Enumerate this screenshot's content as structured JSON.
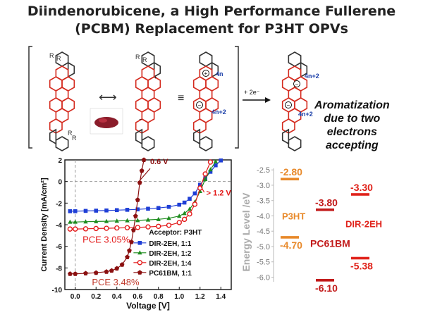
{
  "title": {
    "line1": "Diindenorubicene, a High Performance Fullerene",
    "line2": "(PCBM) Replacement for P3HT OPVs"
  },
  "scheme": {
    "r_label": "R",
    "plus": "+",
    "minus": "−",
    "charge_4n": "4n",
    "charge_4n2": "4n+2",
    "reduction": "+ 2e⁻",
    "equiv": "≡",
    "resonance": "⟷",
    "aromatization": [
      "Aromatization",
      "due to two",
      "electrons",
      "accepting"
    ],
    "colors": {
      "ring": "#d42a1e",
      "bond": "#333333",
      "charge_blue": "#1a3ea8"
    }
  },
  "chart_data": [
    {
      "type": "line",
      "xlabel": "Voltage [V]",
      "ylabel": "Current Density [mA/cm²]",
      "xlim": [
        -0.1,
        1.5
      ],
      "ylim": [
        -10,
        2
      ],
      "xticks": [
        "0.0",
        "0.2",
        "0.4",
        "0.6",
        "0.8",
        "1.0",
        "1.2",
        "1.4"
      ],
      "yticks": [
        "2",
        "0",
        "-2",
        "-4",
        "-6",
        "-8",
        "-10"
      ],
      "legend_title": "Acceptor: P3HT",
      "legend_position": "lower-right",
      "series": [
        {
          "name": "DIR-2EH, 1:1",
          "color": "#1f3fd6",
          "marker": "square",
          "x": [
            -0.05,
            0.0,
            0.1,
            0.2,
            0.3,
            0.4,
            0.5,
            0.6,
            0.7,
            0.8,
            0.9,
            1.0,
            1.05,
            1.1,
            1.15,
            1.2,
            1.25,
            1.3,
            1.35,
            1.4
          ],
          "y": [
            -2.75,
            -2.75,
            -2.72,
            -2.7,
            -2.68,
            -2.65,
            -2.62,
            -2.58,
            -2.52,
            -2.45,
            -2.35,
            -2.15,
            -1.95,
            -1.6,
            -1.1,
            -0.3,
            0.3,
            0.9,
            1.5,
            1.95
          ]
        },
        {
          "name": "DIR-2EH, 1:2",
          "color": "#1e8c1e",
          "marker": "triangle",
          "x": [
            -0.05,
            0.0,
            0.1,
            0.2,
            0.3,
            0.4,
            0.5,
            0.6,
            0.7,
            0.8,
            0.9,
            1.0,
            1.05,
            1.1,
            1.15,
            1.2,
            1.25,
            1.3,
            1.35
          ],
          "y": [
            -3.75,
            -3.75,
            -3.72,
            -3.7,
            -3.68,
            -3.65,
            -3.62,
            -3.6,
            -3.55,
            -3.5,
            -3.4,
            -3.2,
            -2.95,
            -2.55,
            -1.9,
            -0.9,
            0.2,
            1.1,
            1.85
          ]
        },
        {
          "name": "DIR-2EH, 1:4",
          "color": "#e31a1a",
          "marker": "circle",
          "x": [
            -0.05,
            0.0,
            0.1,
            0.2,
            0.3,
            0.4,
            0.5,
            0.6,
            0.7,
            0.8,
            0.9,
            1.0,
            1.05,
            1.1,
            1.15,
            1.2,
            1.25,
            1.3
          ],
          "y": [
            -4.4,
            -4.4,
            -4.38,
            -4.35,
            -4.33,
            -4.3,
            -4.28,
            -4.25,
            -4.2,
            -4.15,
            -4.05,
            -3.8,
            -3.5,
            -3.0,
            -2.1,
            -0.6,
            0.7,
            1.8
          ]
        },
        {
          "name": "PC61BM, 1:1",
          "color": "#8b1010",
          "marker": "pentagon",
          "x": [
            -0.05,
            0.0,
            0.1,
            0.2,
            0.3,
            0.35,
            0.4,
            0.45,
            0.5,
            0.52,
            0.54,
            0.56,
            0.58,
            0.6,
            0.62,
            0.64,
            0.66
          ],
          "y": [
            -8.55,
            -8.55,
            -8.5,
            -8.45,
            -8.35,
            -8.25,
            -8.05,
            -7.7,
            -7.0,
            -6.4,
            -5.6,
            -4.5,
            -3.2,
            -1.7,
            -0.1,
            1.0,
            2.0
          ]
        }
      ],
      "annotations": [
        {
          "text": "0.6 V",
          "x": 0.72,
          "y": 1.6,
          "color": "#8b1010"
        },
        {
          "text": "> 1.2 V",
          "x": 1.26,
          "y": -1.3,
          "color": "#e31a1a"
        },
        {
          "text": "PCE 3.05%",
          "x": 0.07,
          "y": -5.65,
          "color": "#e31a1a"
        },
        {
          "text": "PCE 3.48%",
          "x": 0.16,
          "y": -9.6,
          "color": "#c0392b"
        }
      ]
    },
    {
      "type": "scatter",
      "ylabel": "Energy Level /eV",
      "ylim": [
        -6.15,
        -2.45
      ],
      "yticks": [
        "-2.5",
        "-3.0",
        "-3.5",
        "-4.0",
        "-4.5",
        "-5.0",
        "-5.5",
        "-6.0"
      ],
      "levels": [
        {
          "material": "P3HT",
          "value": -2.8,
          "label": "-2.80",
          "column": 0,
          "color": "#e8892a"
        },
        {
          "material": "P3HT",
          "value": -4.7,
          "label": "-4.70",
          "column": 0,
          "color": "#e8892a"
        },
        {
          "material": "PC61BM",
          "value": -3.8,
          "label": "-3.80",
          "column": 1,
          "color": "#c21a1a"
        },
        {
          "material": "PC61BM",
          "value": -6.1,
          "label": "-6.10",
          "column": 1,
          "color": "#c21a1a"
        },
        {
          "material": "DIR-2EH",
          "value": -3.3,
          "label": "-3.30",
          "column": 2,
          "color": "#e0221a"
        },
        {
          "material": "DIR-2EH",
          "value": -5.38,
          "label": "-5.38",
          "column": 2,
          "color": "#e0221a"
        }
      ],
      "material_labels": [
        "P3HT",
        "PC61BM",
        "DIR-2EH"
      ]
    }
  ]
}
